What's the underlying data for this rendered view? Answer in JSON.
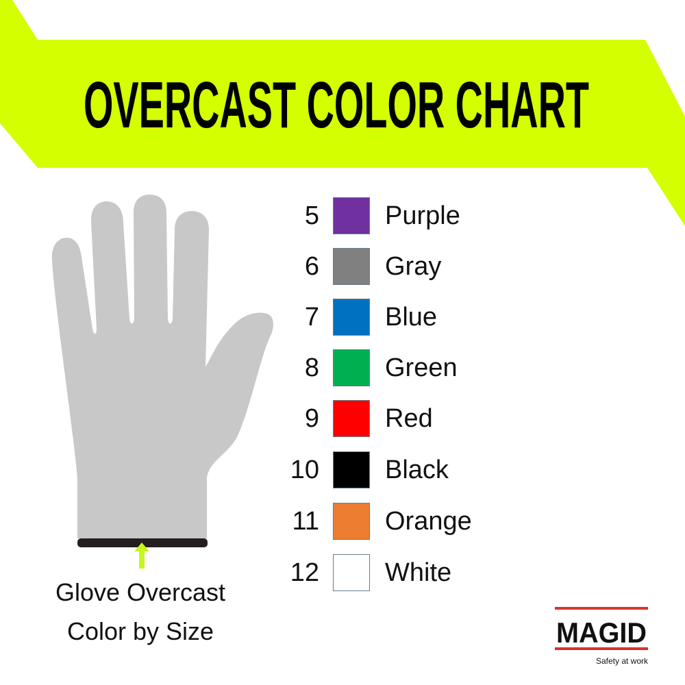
{
  "title": "OVERCAST COLOR CHART",
  "colors": {
    "banner": "#d4ff00",
    "glove": "#c8c8c8",
    "cuff": "#231f20",
    "arrow": "#c6f71e"
  },
  "caption": {
    "line1": "Glove Overcast",
    "line2": "Color by Size"
  },
  "sizes": [
    {
      "size": "5",
      "color_name": "Purple",
      "hex": "#7030a0"
    },
    {
      "size": "6",
      "color_name": "Gray",
      "hex": "#808080"
    },
    {
      "size": "7",
      "color_name": "Blue",
      "hex": "#0070c0"
    },
    {
      "size": "8",
      "color_name": "Green",
      "hex": "#00b050"
    },
    {
      "size": "9",
      "color_name": "Red",
      "hex": "#ff0000"
    },
    {
      "size": "10",
      "color_name": "Black",
      "hex": "#000000"
    },
    {
      "size": "11",
      "color_name": "Orange",
      "hex": "#ed7d31"
    },
    {
      "size": "12",
      "color_name": "White",
      "hex": "#ffffff"
    }
  ],
  "logo": {
    "brand": "MAGID",
    "tagline": "Safety at work"
  }
}
